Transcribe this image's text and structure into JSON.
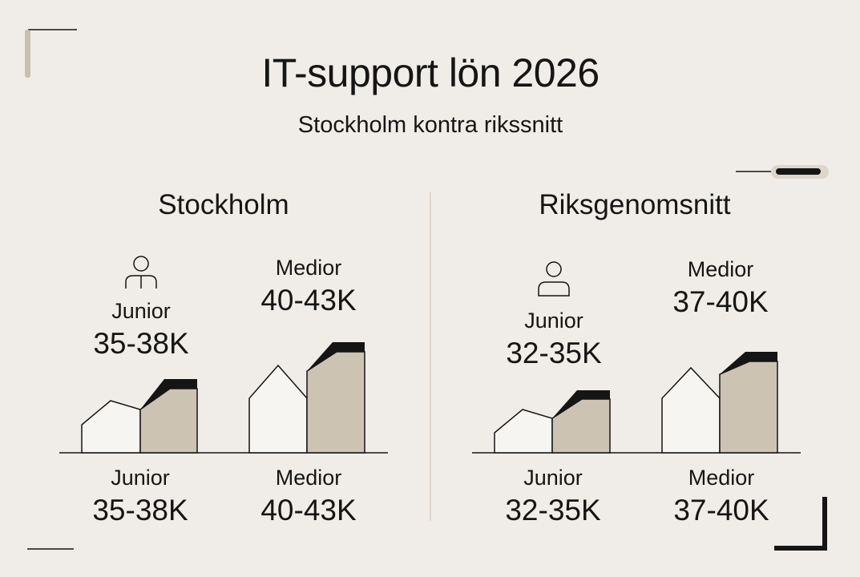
{
  "title": "IT-support lön 2026",
  "subtitle": "Stockholm kontra rikssnitt",
  "colors": {
    "background": "#f0ede8",
    "fill_tan": "#cdc3b3",
    "ink": "#151515"
  },
  "panels": [
    {
      "title": "Stockholm",
      "top": [
        {
          "icon": "person-icon",
          "label": "Junior",
          "value": "35-38K"
        },
        {
          "label": "Medior",
          "value": "40-43K"
        }
      ],
      "bottom": [
        {
          "label": "Junior",
          "value": "35-38K"
        },
        {
          "label": "Medior",
          "value": "40-43K"
        }
      ]
    },
    {
      "title": "Riksgenomsnitt",
      "top": [
        {
          "icon": "person-icon",
          "label": "Junior",
          "value": "32-35K"
        },
        {
          "label": "Medior",
          "value": "37-40K"
        }
      ],
      "bottom": [
        {
          "label": "Junior",
          "value": "32-35K"
        },
        {
          "label": "Medior",
          "value": "37-40K"
        }
      ]
    }
  ]
}
